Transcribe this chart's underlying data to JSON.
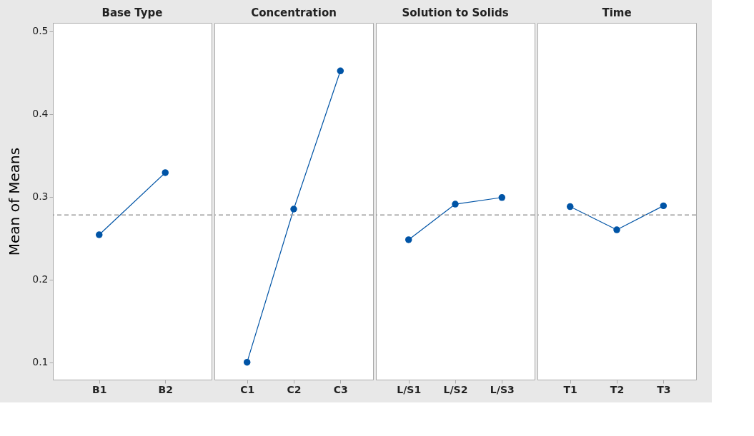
{
  "chart_data": [
    {
      "type": "line",
      "title": "Base Type",
      "ylabel": "Mean of Means",
      "categories": [
        "B1",
        "B2"
      ],
      "series": [
        {
          "color": "#0054a6",
          "values": [
            0.254,
            0.329
          ]
        }
      ],
      "ylim": [
        0.079,
        0.51
      ],
      "yticks": [
        0.1,
        0.2,
        0.3,
        0.4,
        0.5
      ],
      "marker": "circle",
      "line_style": "solid",
      "grid": false,
      "ref_lines": [
        {
          "axis": "y",
          "value": 0.278,
          "color": "#999999",
          "line_style": "dashed"
        }
      ]
    },
    {
      "type": "line",
      "title": "Concentration",
      "categories": [
        "C1",
        "C2",
        "C3"
      ],
      "series": [
        {
          "color": "#0054a6",
          "values": [
            0.1,
            0.285,
            0.452
          ]
        }
      ],
      "ylim": [
        0.079,
        0.51
      ],
      "yticks": [
        0.1,
        0.2,
        0.3,
        0.4,
        0.5
      ],
      "tick_labels": "x",
      "marker": "circle",
      "line_style": "solid",
      "grid": false,
      "ref_lines": [
        {
          "axis": "y",
          "value": 0.278,
          "color": "#999999",
          "line_style": "dashed"
        }
      ]
    },
    {
      "type": "line",
      "title": "Solution to Solids",
      "categories": [
        "L/S1",
        "L/S2",
        "L/S3"
      ],
      "series": [
        {
          "color": "#0054a6",
          "values": [
            0.248,
            0.291,
            0.299
          ]
        }
      ],
      "ylim": [
        0.079,
        0.51
      ],
      "yticks": [
        0.1,
        0.2,
        0.3,
        0.4,
        0.5
      ],
      "tick_labels": "x",
      "marker": "circle",
      "line_style": "solid",
      "grid": false,
      "ref_lines": [
        {
          "axis": "y",
          "value": 0.278,
          "color": "#999999",
          "line_style": "dashed"
        }
      ]
    },
    {
      "type": "line",
      "title": "Time",
      "categories": [
        "T1",
        "T2",
        "T3"
      ],
      "series": [
        {
          "color": "#0054a6",
          "values": [
            0.288,
            0.26,
            0.289
          ]
        }
      ],
      "ylim": [
        0.079,
        0.51
      ],
      "yticks": [
        0.1,
        0.2,
        0.3,
        0.4,
        0.5
      ],
      "tick_labels": "x",
      "marker": "circle",
      "line_style": "solid",
      "grid": false,
      "ref_lines": [
        {
          "axis": "y",
          "value": 0.278,
          "color": "#999999",
          "line_style": "dashed"
        }
      ]
    }
  ]
}
